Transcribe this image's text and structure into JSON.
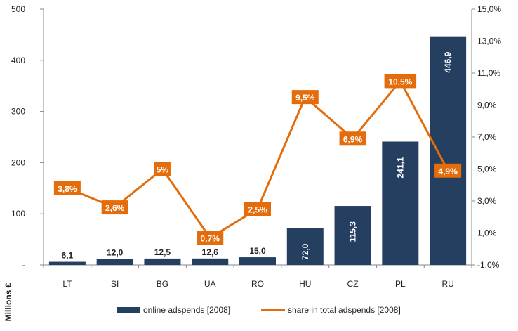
{
  "chart_data": {
    "type": "bar",
    "categories": [
      "LT",
      "SI",
      "BG",
      "UA",
      "RO",
      "HU",
      "CZ",
      "PL",
      "RU"
    ],
    "series": [
      {
        "name": "online adspends [2008]",
        "type": "bar",
        "axis": "left",
        "values": [
          6.1,
          12.0,
          12.5,
          12.6,
          15.0,
          72.0,
          115.3,
          241.1,
          446.9
        ],
        "labels": [
          "6,1",
          "12,0",
          "12,5",
          "12,6",
          "15,0",
          "72,0",
          "115,3",
          "241,1",
          "446,9"
        ],
        "color": "#243f60"
      },
      {
        "name": "share in total adspends [2008]",
        "type": "line",
        "axis": "right",
        "values": [
          3.8,
          2.6,
          5.0,
          0.7,
          2.5,
          9.5,
          6.9,
          10.5,
          4.9
        ],
        "labels": [
          "3,8%",
          "2,6%",
          "5%",
          "0,7%",
          "2,5%",
          "9,5%",
          "6,9%",
          "10,5%",
          "4,9%"
        ],
        "color": "#e46c0a"
      }
    ],
    "ylabel": "Millions €",
    "ylim": [
      0,
      500
    ],
    "yticks": [
      0,
      100,
      200,
      300,
      400,
      500
    ],
    "ytick_labels": [
      "-",
      "100",
      "200",
      "300",
      "400",
      "500"
    ],
    "y2lim": [
      -1.0,
      15.0
    ],
    "y2ticks": [
      -1,
      1,
      3,
      5,
      7,
      9,
      11,
      13,
      15
    ],
    "y2tick_labels": [
      "-1,0%",
      "1,0%",
      "3,0%",
      "5,0%",
      "7,0%",
      "9,0%",
      "11,0%",
      "13,0%",
      "15,0%"
    ],
    "grid": false,
    "legend_position": "bottom"
  }
}
